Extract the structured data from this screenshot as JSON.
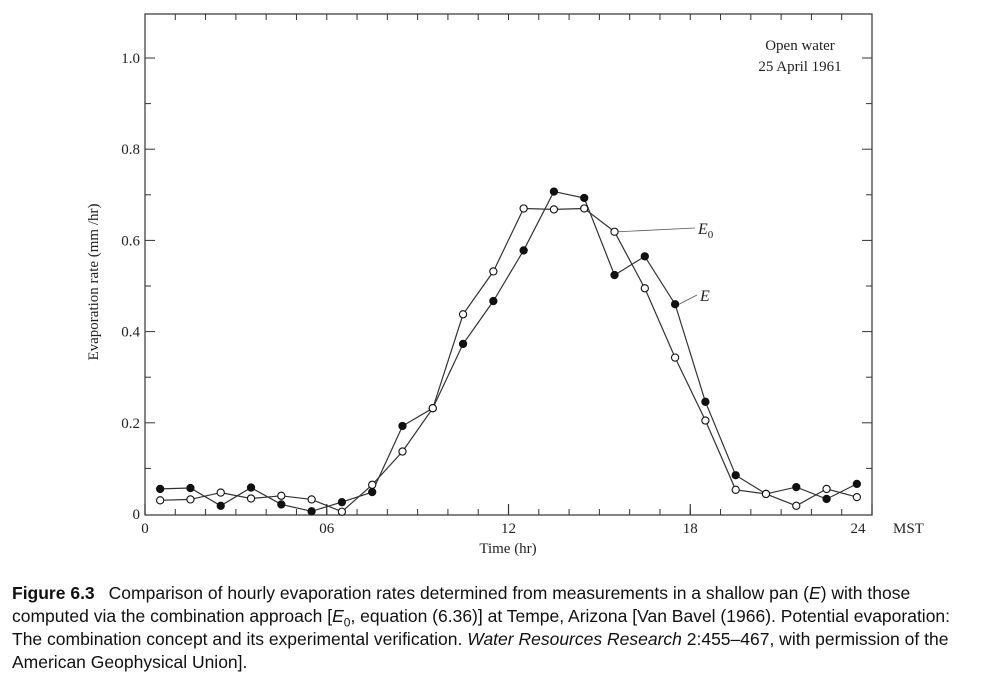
{
  "chart_data": {
    "type": "line",
    "annotation_lines": [
      "Open water",
      "25 April 1961"
    ],
    "xlabel": "Time (hr)",
    "ylabel": "Evaporation rate (mm /hr)",
    "x_unit_label": "MST",
    "xlim": [
      0,
      24
    ],
    "ylim": [
      0,
      1.1
    ],
    "x_ticks": [
      {
        "value": 0,
        "label": "0"
      },
      {
        "value": 6,
        "label": "06"
      },
      {
        "value": 12,
        "label": "12"
      },
      {
        "value": 18,
        "label": "18"
      },
      {
        "value": 24,
        "label": "24"
      }
    ],
    "y_ticks": [
      {
        "value": 0,
        "label": "0"
      },
      {
        "value": 0.2,
        "label": "0.2"
      },
      {
        "value": 0.4,
        "label": "0.4"
      },
      {
        "value": 0.6,
        "label": "0.6"
      },
      {
        "value": 0.8,
        "label": "0.8"
      },
      {
        "value": 1.0,
        "label": "1.0"
      }
    ],
    "grid": false,
    "series": [
      {
        "name": "E",
        "marker": "filled-circle",
        "x": [
          0.5,
          1.5,
          2.5,
          3.5,
          4.5,
          5.5,
          6.5,
          7.5,
          8.5,
          9.5,
          10.5,
          11.5,
          12.5,
          13.5,
          14.5,
          15.5,
          16.5,
          17.5,
          18.5,
          19.5,
          20.5,
          21.5,
          22.5,
          23.5
        ],
        "values": [
          0.055,
          0.057,
          0.018,
          0.058,
          0.021,
          0.006,
          0.026,
          0.048,
          0.193,
          0.232,
          0.373,
          0.467,
          0.578,
          0.707,
          0.693,
          0.524,
          0.565,
          0.46,
          0.246,
          0.085,
          0.044,
          0.059,
          0.033,
          0.066
        ]
      },
      {
        "name": "E0",
        "marker": "open-circle",
        "x": [
          0.5,
          1.5,
          2.5,
          3.5,
          4.5,
          5.5,
          6.5,
          7.5,
          8.5,
          9.5,
          10.5,
          11.5,
          12.5,
          13.5,
          14.5,
          15.5,
          16.5,
          17.5,
          18.5,
          19.5,
          20.5,
          21.5,
          22.5,
          23.5
        ],
        "values": [
          0.03,
          0.032,
          0.047,
          0.034,
          0.04,
          0.032,
          0.005,
          0.064,
          0.137,
          0.232,
          0.438,
          0.532,
          0.67,
          0.668,
          0.67,
          0.619,
          0.495,
          0.343,
          0.205,
          0.053,
          0.044,
          0.018,
          0.055,
          0.037
        ]
      }
    ],
    "series_callouts": [
      {
        "main": "E",
        "sub": "0",
        "point_index": 15
      },
      {
        "main": "E",
        "sub": "",
        "point_index": 17
      }
    ]
  },
  "caption": {
    "label": "Figure 6.3",
    "text_a": "Comparison of hourly evaporation rates determined from measurements in a shallow pan (",
    "text_a_em": "E",
    "text_b": ") with those computed via the combination approach [",
    "text_b_em": "E",
    "text_b_sub": "0",
    "text_c": ", equation (6.36)] at Tempe, Arizona [Van Bavel (1966). Potential evaporation: The combination concept and its experimental verification. ",
    "text_c_em": "Water Resources Research",
    "text_d": " 2:455–467, with permission of the American Geophysical Union]."
  }
}
